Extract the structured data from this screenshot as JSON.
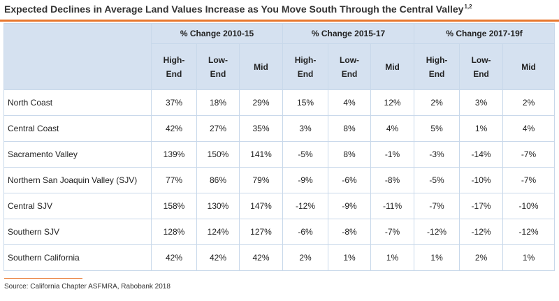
{
  "chart_data": {
    "type": "table",
    "title": "Expected Declines in Average Land Values Increase as You Move South Through the Central Valley",
    "title_superscript": "1,2",
    "column_groups": [
      "% Change 2010-15",
      "% Change 2015-17",
      "% Change 2017-19f"
    ],
    "sub_columns": [
      [
        "High-",
        "End"
      ],
      [
        "Low-",
        "End"
      ],
      [
        "Mid"
      ]
    ],
    "rows": [
      {
        "region": "North Coast",
        "values": [
          "37%",
          "18%",
          "29%",
          "15%",
          "4%",
          "12%",
          "2%",
          "3%",
          "2%"
        ]
      },
      {
        "region": "Central Coast",
        "values": [
          "42%",
          "27%",
          "35%",
          "3%",
          "8%",
          "4%",
          "5%",
          "1%",
          "4%"
        ]
      },
      {
        "region": "Sacramento Valley",
        "values": [
          "139%",
          "150%",
          "141%",
          "-5%",
          "8%",
          "-1%",
          "-3%",
          "-14%",
          "-7%"
        ]
      },
      {
        "region": "Northern San Joaquin Valley (SJV)",
        "values": [
          "77%",
          "86%",
          "79%",
          "-9%",
          "-6%",
          "-8%",
          "-5%",
          "-10%",
          "-7%"
        ]
      },
      {
        "region": "Central SJV",
        "values": [
          "158%",
          "130%",
          "147%",
          "-12%",
          "-9%",
          "-11%",
          "-7%",
          "-17%",
          "-10%"
        ]
      },
      {
        "region": "Southern SJV",
        "values": [
          "128%",
          "124%",
          "127%",
          "-6%",
          "-8%",
          "-7%",
          "-12%",
          "-12%",
          "-12%"
        ]
      },
      {
        "region": "Southern California",
        "values": [
          "42%",
          "42%",
          "42%",
          "2%",
          "1%",
          "1%",
          "1%",
          "2%",
          "1%"
        ]
      }
    ],
    "source": "Source: California Chapter ASFMRA, Rabobank 2018"
  },
  "colors": {
    "accent": "#e8772e",
    "header_fill": "#d5e1f0",
    "grid": "#c8d8ea"
  }
}
